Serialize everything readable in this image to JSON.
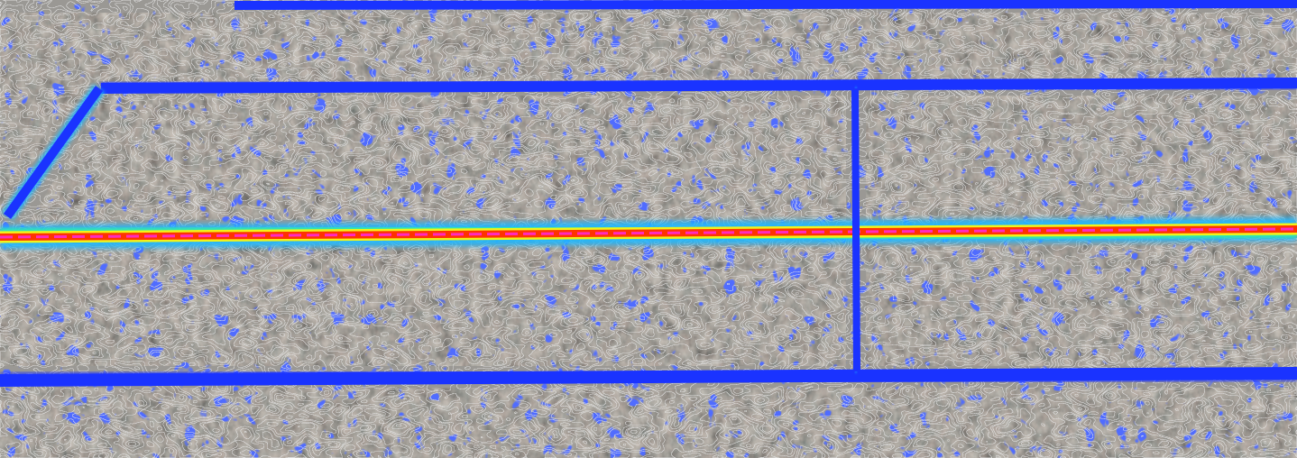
{
  "map": {
    "kind": "aerial residential imagery with traffic density heatmap overlay",
    "layers": [
      "aerial-imagery",
      "parcel-contours",
      "density-heatmap"
    ],
    "heatmap_colors": {
      "low": "#1a33ff",
      "medium_low": "#1fb8ff",
      "medium": "#35f0a0",
      "medium_high": "#f2f21a",
      "high": "#ff3300",
      "peak": "#ff2ad6"
    },
    "contour_color": "#c8c8c8",
    "roads": [
      {
        "name": "main-arterial",
        "density_level": "peak",
        "orientation": "horizontal"
      },
      {
        "name": "upper-street",
        "density_level": "low",
        "orientation": "horizontal"
      },
      {
        "name": "lower-street",
        "density_level": "low",
        "orientation": "horizontal"
      },
      {
        "name": "top-edge-street",
        "density_level": "low",
        "orientation": "horizontal"
      },
      {
        "name": "cross-street",
        "density_level": "medium_low",
        "orientation": "vertical"
      },
      {
        "name": "diagonal-street",
        "density_level": "medium_low",
        "orientation": "diagonal"
      }
    ]
  }
}
